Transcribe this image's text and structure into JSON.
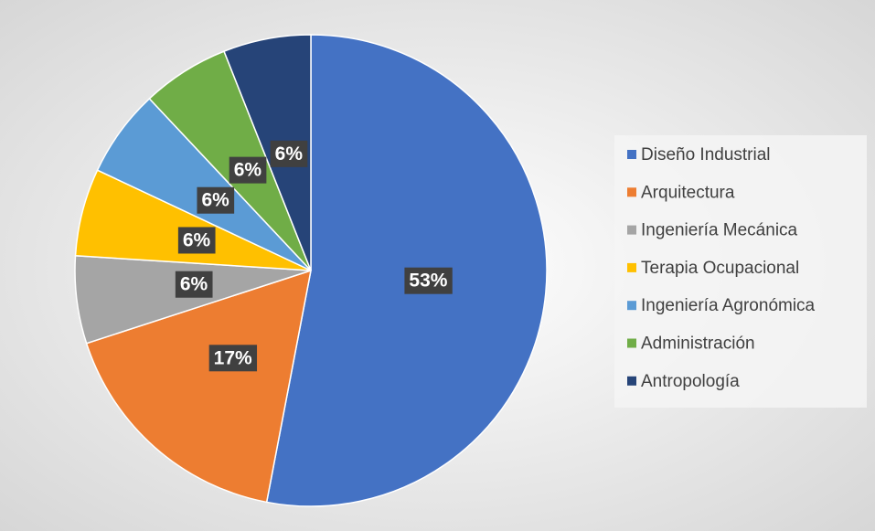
{
  "chart_data": {
    "type": "pie",
    "categories": [
      "Diseño Industrial",
      "Arquitectura",
      "Ingeniería Mecánica",
      "Terapia Ocupacional",
      "Ingeniería Agronómica",
      "Administración",
      "Antropología"
    ],
    "values": [
      53,
      17,
      6,
      6,
      6,
      6,
      6
    ],
    "value_labels": [
      "53%",
      "17%",
      "6%",
      "6%",
      "6%",
      "6%",
      "6%"
    ],
    "colors": [
      "#4472c4",
      "#ed7d31",
      "#a5a5a5",
      "#ffc000",
      "#5b9bd5",
      "#70ad47",
      "#264478"
    ],
    "legend": "right"
  }
}
